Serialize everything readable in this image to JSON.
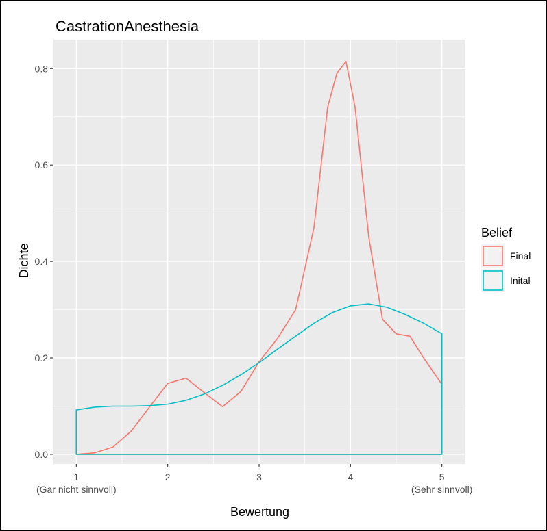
{
  "chart_data": {
    "type": "area",
    "title": "CastrationAnesthesia",
    "xlabel": "Bewertung",
    "ylabel": "Dichte",
    "xlim": [
      0.75,
      5.25
    ],
    "ylim": [
      -0.02,
      0.86
    ],
    "x_ticks": [
      {
        "value": 1,
        "label": "1",
        "sublabel": "(Gar nicht sinnvoll)"
      },
      {
        "value": 2,
        "label": "2",
        "sublabel": ""
      },
      {
        "value": 3,
        "label": "3",
        "sublabel": ""
      },
      {
        "value": 4,
        "label": "4",
        "sublabel": ""
      },
      {
        "value": 5,
        "label": "5",
        "sublabel": "(Sehr sinnvoll)"
      }
    ],
    "y_ticks": [
      {
        "value": 0.0,
        "label": "0.0"
      },
      {
        "value": 0.2,
        "label": "0.2"
      },
      {
        "value": 0.4,
        "label": "0.4"
      },
      {
        "value": 0.6,
        "label": "0.6"
      },
      {
        "value": 0.8,
        "label": "0.8"
      }
    ],
    "grid": true,
    "legend": {
      "title": "Belief",
      "position": "right"
    },
    "series": [
      {
        "name": "Final",
        "color": "#F8766D",
        "x": [
          1.0,
          1.2,
          1.4,
          1.6,
          1.8,
          2.0,
          2.2,
          2.4,
          2.6,
          2.8,
          3.0,
          3.2,
          3.4,
          3.6,
          3.75,
          3.85,
          3.95,
          4.05,
          4.2,
          4.35,
          4.5,
          4.65,
          4.8,
          5.0
        ],
        "y": [
          0.0,
          0.003,
          0.015,
          0.048,
          0.098,
          0.147,
          0.158,
          0.128,
          0.099,
          0.13,
          0.192,
          0.24,
          0.3,
          0.47,
          0.72,
          0.79,
          0.815,
          0.72,
          0.45,
          0.28,
          0.25,
          0.245,
          0.2,
          0.145
        ]
      },
      {
        "name": "Inital",
        "color": "#00BFC4",
        "x": [
          1.0,
          1.2,
          1.4,
          1.6,
          1.8,
          2.0,
          2.2,
          2.4,
          2.6,
          2.8,
          3.0,
          3.2,
          3.4,
          3.6,
          3.8,
          4.0,
          4.2,
          4.4,
          4.6,
          4.8,
          5.0
        ],
        "y": [
          0.092,
          0.098,
          0.1,
          0.1,
          0.101,
          0.104,
          0.112,
          0.125,
          0.143,
          0.165,
          0.19,
          0.218,
          0.245,
          0.272,
          0.294,
          0.308,
          0.312,
          0.305,
          0.29,
          0.272,
          0.25
        ]
      }
    ]
  }
}
